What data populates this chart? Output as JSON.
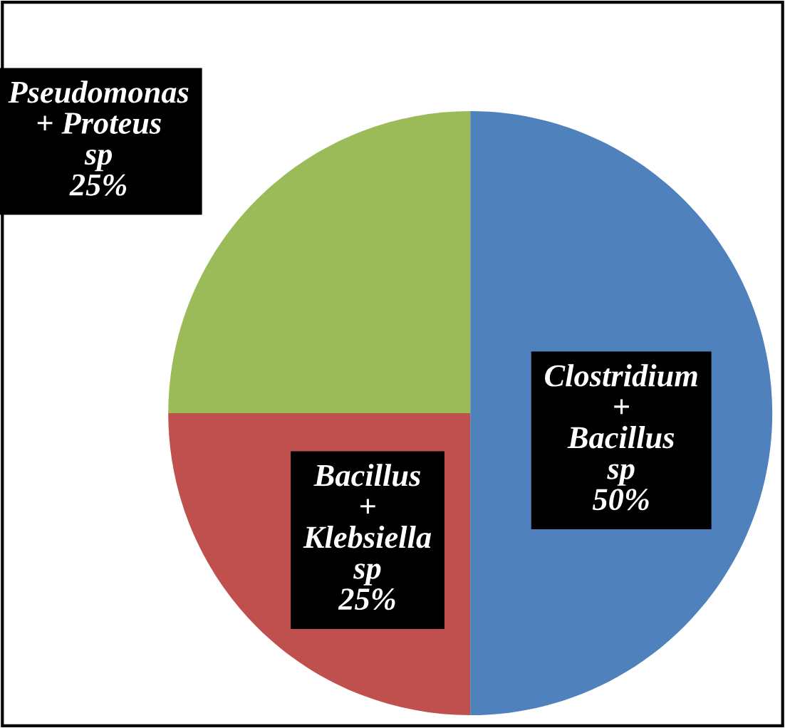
{
  "chart_data": {
    "type": "pie",
    "categories": [
      "Clostridium + Bacillus sp",
      "Bacillus + Klebsiella sp",
      "Pseudomonas + Proteus sp"
    ],
    "values": [
      50,
      25,
      25
    ],
    "colors": [
      "#4f81bd",
      "#c0504d",
      "#9bbb59"
    ],
    "value_labels": [
      "50%",
      "25%",
      "25%"
    ],
    "legend": false
  }
}
